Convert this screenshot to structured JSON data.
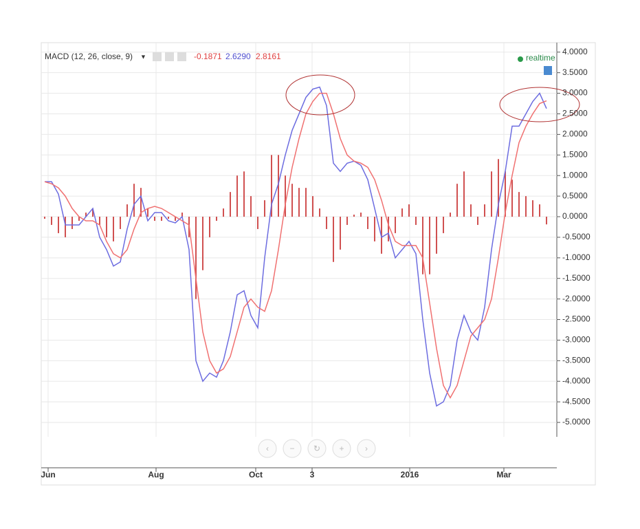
{
  "chart_data": {
    "type": "line",
    "title": "MACD (12, 26, close, 9)",
    "status": "realtime",
    "last_values": [
      "-0.1871",
      "2.6290",
      "2.8161"
    ],
    "xlim": [
      0,
      75
    ],
    "xticks": [
      {
        "value": 1,
        "label": "Jun"
      },
      {
        "value": 16.7,
        "label": "Aug"
      },
      {
        "value": 31.2,
        "label": "Oct"
      },
      {
        "value": 39.4,
        "label": "3"
      },
      {
        "value": 53.6,
        "label": "2016"
      },
      {
        "value": 67.3,
        "label": "Mar"
      }
    ],
    "ylim": [
      -5.35,
      4.23
    ],
    "yticks": [
      {
        "value": 4,
        "label": "4.0000"
      },
      {
        "value": 3.5,
        "label": "3.5000"
      },
      {
        "value": 3,
        "label": "3.0000"
      },
      {
        "value": 2.5,
        "label": "2.5000"
      },
      {
        "value": 2,
        "label": "2.0000"
      },
      {
        "value": 1.5,
        "label": "1.5000"
      },
      {
        "value": 1,
        "label": "1.0000"
      },
      {
        "value": 0.5,
        "label": "0.5000"
      },
      {
        "value": 0,
        "label": "0.0000"
      },
      {
        "value": -0.5,
        "label": "-0.5000"
      },
      {
        "value": -1,
        "label": "-1.0000"
      },
      {
        "value": -1.5,
        "label": "-1.5000"
      },
      {
        "value": -2,
        "label": "-2.0000"
      },
      {
        "value": -2.5,
        "label": "-2.5000"
      },
      {
        "value": -3,
        "label": "-3.0000"
      },
      {
        "value": -3.5,
        "label": "-3.5000"
      },
      {
        "value": -4,
        "label": "-4.0000"
      },
      {
        "value": -4.5,
        "label": "-4.5000"
      },
      {
        "value": -5,
        "label": "-5.0000"
      }
    ],
    "grid": true,
    "series": [
      {
        "color": "#d05050",
        "kind": "histogram",
        "values": [
          -0.05,
          -0.2,
          -0.4,
          -0.5,
          -0.3,
          -0.1,
          0.1,
          0.2,
          -0.2,
          -0.5,
          -0.6,
          -0.3,
          0.3,
          0.8,
          0.7,
          0.2,
          -0.1,
          -0.1,
          -0.05,
          -0.1,
          0.1,
          -0.5,
          -2.0,
          -1.3,
          -0.5,
          -0.1,
          0.2,
          0.6,
          1.0,
          1.1,
          0.5,
          -0.3,
          0.4,
          1.5,
          1.5,
          1.0,
          0.8,
          0.7,
          0.7,
          0.5,
          0.2,
          -0.3,
          -1.1,
          -0.8,
          -0.2,
          0.05,
          0.1,
          -0.3,
          -0.6,
          -0.9,
          -0.6,
          -0.4,
          0.2,
          0.3,
          -0.2,
          -1.4,
          -1.4,
          -0.9,
          -0.4,
          0.1,
          0.8,
          1.1,
          0.3,
          -0.2,
          0.3,
          1.1,
          1.4,
          1.1,
          0.9,
          0.6,
          0.5,
          0.4,
          0.3,
          -0.1871
        ]
      },
      {
        "color": "#6c6ce0",
        "kind": "line",
        "values": [
          0.85,
          0.85,
          0.55,
          -0.2,
          -0.2,
          -0.2,
          0.0,
          0.2,
          -0.5,
          -0.8,
          -1.2,
          -1.1,
          -0.3,
          0.3,
          0.5,
          -0.1,
          0.1,
          0.1,
          -0.1,
          -0.15,
          0.0,
          -0.8,
          -3.5,
          -4.0,
          -3.8,
          -3.9,
          -3.5,
          -2.8,
          -1.9,
          -1.8,
          -2.4,
          -2.7,
          -1.0,
          0.3,
          0.8,
          1.5,
          2.1,
          2.5,
          2.9,
          3.1,
          3.15,
          2.7,
          1.3,
          1.1,
          1.3,
          1.35,
          1.25,
          0.9,
          0.2,
          -0.5,
          -0.4,
          -1.0,
          -0.8,
          -0.6,
          -0.9,
          -2.5,
          -3.8,
          -4.6,
          -4.5,
          -4.1,
          -3.0,
          -2.4,
          -2.8,
          -3.0,
          -2.2,
          -0.8,
          0.3,
          1.1,
          2.2,
          2.2,
          2.5,
          2.8,
          3.0,
          2.629
        ]
      },
      {
        "color": "#f07070",
        "kind": "line",
        "values": [
          0.85,
          0.8,
          0.7,
          0.5,
          0.2,
          0.0,
          -0.1,
          -0.1,
          -0.2,
          -0.6,
          -0.9,
          -1.0,
          -0.8,
          -0.3,
          0.1,
          0.2,
          0.25,
          0.2,
          0.1,
          0.0,
          -0.1,
          -0.2,
          -1.5,
          -2.8,
          -3.5,
          -3.8,
          -3.7,
          -3.4,
          -2.8,
          -2.2,
          -2.0,
          -2.2,
          -2.3,
          -1.8,
          -0.8,
          0.3,
          1.2,
          1.9,
          2.5,
          2.8,
          3.0,
          3.0,
          2.5,
          1.9,
          1.5,
          1.35,
          1.3,
          1.2,
          0.9,
          0.4,
          -0.2,
          -0.6,
          -0.7,
          -0.7,
          -0.7,
          -1.0,
          -2.1,
          -3.2,
          -4.1,
          -4.4,
          -4.1,
          -3.5,
          -2.9,
          -2.7,
          -2.5,
          -2.0,
          -1.0,
          0.1,
          1.0,
          1.8,
          2.2,
          2.5,
          2.75,
          2.8161
        ]
      }
    ]
  }
}
